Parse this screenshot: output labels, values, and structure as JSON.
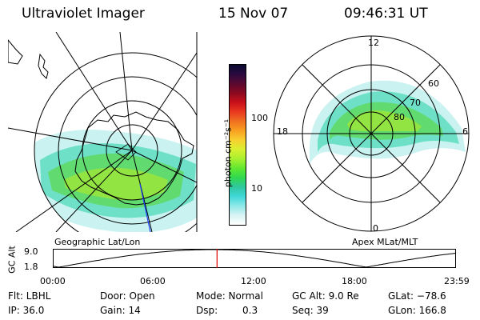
{
  "header": {
    "instrument": "Ultraviolet Imager",
    "date": "15 Nov 07",
    "time": "09:46:31 UT"
  },
  "geo_panel": {
    "label": "Geographic Lat/Lon"
  },
  "apex_panel": {
    "label": "Apex MLat/MLT",
    "mlt_labels": {
      "top": "12",
      "left": "18",
      "right": "6",
      "bottom": "0"
    },
    "lat_labels": [
      "60",
      "70",
      "80"
    ]
  },
  "colorbar": {
    "unit_label": "photon cm⁻²s⁻¹",
    "tick_100": "100",
    "tick_10": "10",
    "colors": [
      "#0a0a30",
      "#2a0a40",
      "#5a0a30",
      "#8a0a20",
      "#c8101a",
      "#e83820",
      "#f07020",
      "#f8a020",
      "#f8d030",
      "#d8f030",
      "#a8f030",
      "#60e830",
      "#30d850",
      "#30c8a0",
      "#40d8d8",
      "#90e8e8",
      "#d8f4f4",
      "#ffffff"
    ]
  },
  "altitude_plot": {
    "ylabel": "GC Alt",
    "ymax": "9.0",
    "ymin": "1.8",
    "xticks": [
      "00:00",
      "06:00",
      "12:00",
      "18:00",
      "23:59"
    ],
    "current_time_hours": 9.775
  },
  "info": {
    "filter": "Flt: LBHL",
    "ip": "IP: 36.0",
    "door": "Door: Open",
    "gain": "Gain: 14",
    "mode": "Mode: Normal",
    "dsp_label": "Dsp:",
    "dsp_value": "0.3",
    "gc_alt": "GC Alt: 9.0 Re",
    "seq": "Seq: 39",
    "glat": "GLat: −78.6",
    "glon": "GLon: 166.8"
  }
}
